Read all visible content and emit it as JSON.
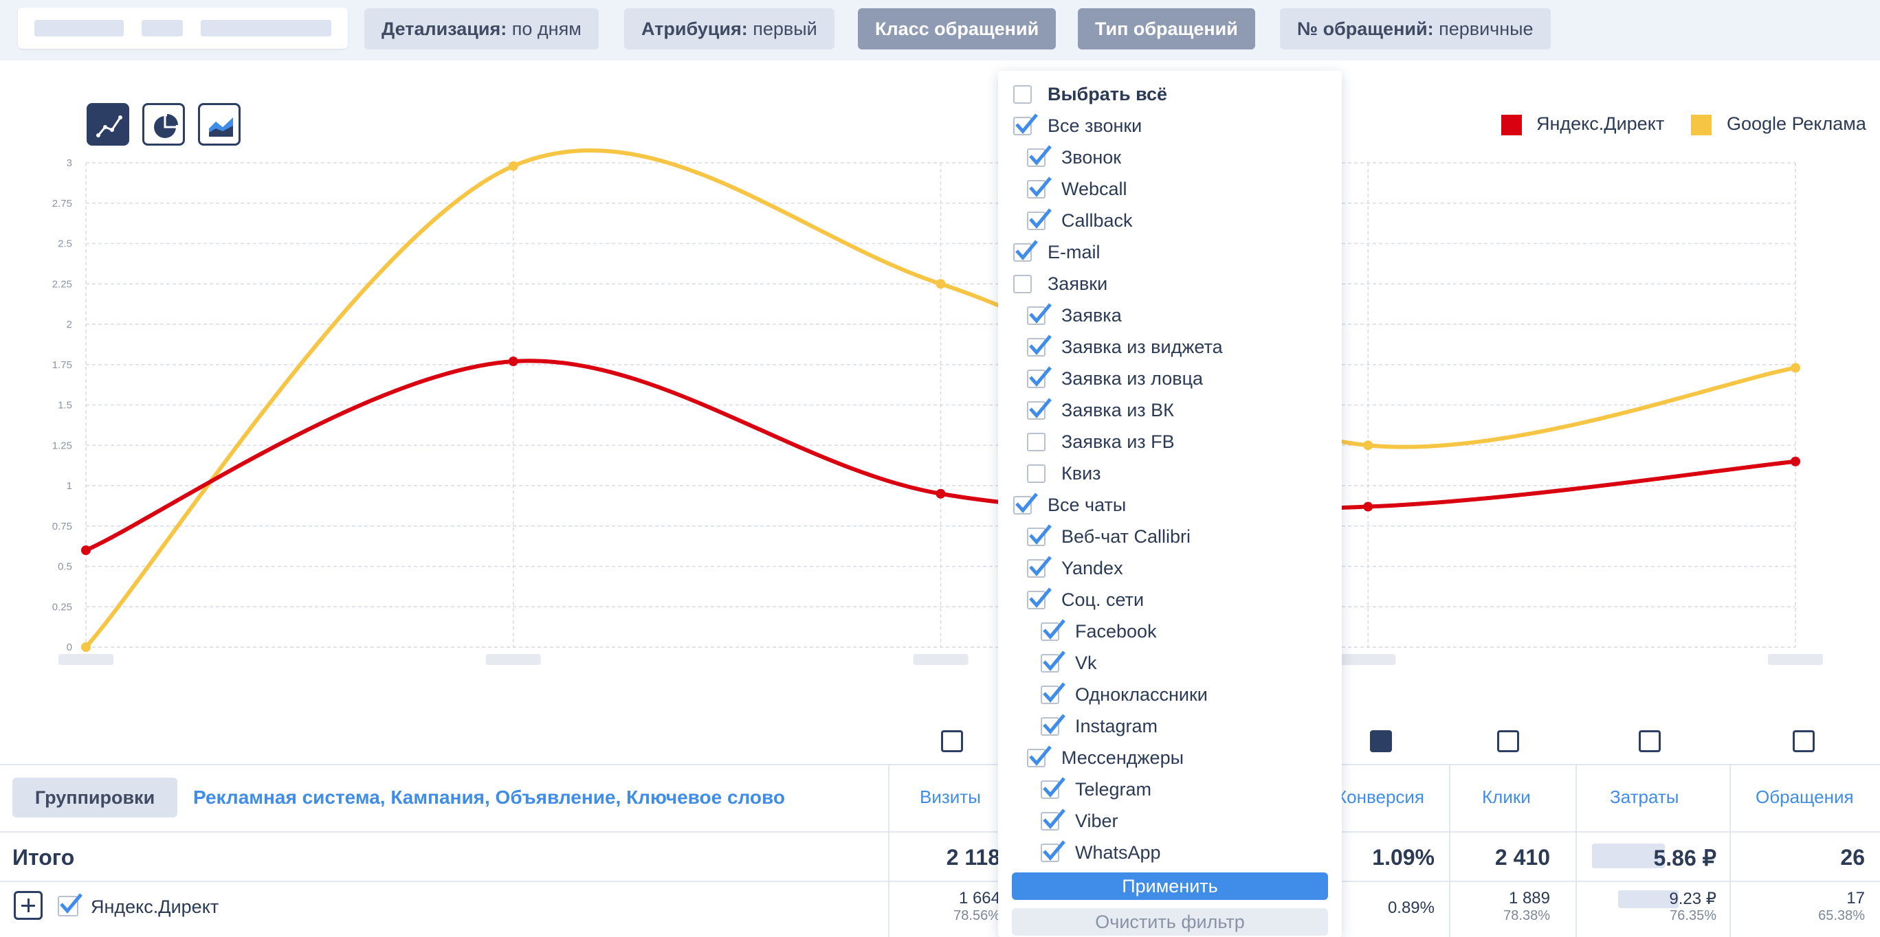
{
  "topbar": {
    "detail": {
      "key": "Детализация:",
      "value": "по дням"
    },
    "attribution": {
      "key": "Атрибуция:",
      "value": "первый"
    },
    "class_label": "Класс обращений",
    "type_label": "Тип обращений",
    "number": {
      "key": "№ обращений:",
      "value": "первичные"
    }
  },
  "legend": [
    {
      "name": "Яндекс.Директ",
      "color": "#d9000f"
    },
    {
      "name": "Google Реклама",
      "color": "#f7c544"
    }
  ],
  "chart_data": {
    "type": "line",
    "ylim": [
      0,
      3
    ],
    "yticks": [
      "0",
      "0.25",
      "0.5",
      "0.75",
      "1",
      "1.25",
      "1.5",
      "1.75",
      "2",
      "2.25",
      "2.5",
      "2.75",
      "3"
    ],
    "x_count": 5,
    "series": [
      {
        "name": "Яндекс.Директ",
        "color": "#d9000f",
        "values": [
          0.6,
          1.77,
          0.95,
          0.87,
          1.15
        ]
      },
      {
        "name": "Google Реклама",
        "color": "#f7c544",
        "values": [
          0.0,
          2.98,
          2.25,
          1.25,
          1.73
        ]
      }
    ]
  },
  "dropdown": {
    "items": [
      {
        "label": "Выбрать всё",
        "checked": false,
        "level": 0,
        "bold": true
      },
      {
        "label": "Все звонки",
        "checked": true,
        "level": 0
      },
      {
        "label": "Звонок",
        "checked": true,
        "level": 1
      },
      {
        "label": "Webcall",
        "checked": true,
        "level": 1
      },
      {
        "label": "Callback",
        "checked": true,
        "level": 1
      },
      {
        "label": "E-mail",
        "checked": true,
        "level": 0
      },
      {
        "label": "Заявки",
        "checked": false,
        "level": 0
      },
      {
        "label": "Заявка",
        "checked": true,
        "level": 1
      },
      {
        "label": "Заявка из виджета",
        "checked": true,
        "level": 1
      },
      {
        "label": "Заявка из ловца",
        "checked": true,
        "level": 1
      },
      {
        "label": "Заявка из ВК",
        "checked": true,
        "level": 1
      },
      {
        "label": "Заявка из FB",
        "checked": false,
        "level": 1
      },
      {
        "label": "Квиз",
        "checked": false,
        "level": 1
      },
      {
        "label": "Все чаты",
        "checked": true,
        "level": 0
      },
      {
        "label": "Веб-чат Callibri",
        "checked": true,
        "level": 1
      },
      {
        "label": "Yandex",
        "checked": true,
        "level": 1
      },
      {
        "label": "Соц. сети",
        "checked": true,
        "level": 1
      },
      {
        "label": "Facebook",
        "checked": true,
        "level": 2
      },
      {
        "label": "Vk",
        "checked": true,
        "level": 2
      },
      {
        "label": "Одноклассники",
        "checked": true,
        "level": 2
      },
      {
        "label": "Instagram",
        "checked": true,
        "level": 2
      },
      {
        "label": "Мессенджеры",
        "checked": true,
        "level": 1
      },
      {
        "label": "Telegram",
        "checked": true,
        "level": 2
      },
      {
        "label": "Viber",
        "checked": true,
        "level": 2
      },
      {
        "label": "WhatsApp",
        "checked": true,
        "level": 2
      }
    ],
    "apply_label": "Применить",
    "clear_label": "Очистить фильтр"
  },
  "table": {
    "group_button": "Группировки",
    "group_list": "Рекламная система, Кампания, Объявление, Ключевое слово",
    "columns": {
      "visits": "Визиты",
      "conversion": "Конверсия",
      "clicks": "Клики",
      "costs": "Затраты",
      "requests": "Обращения"
    },
    "total": {
      "label": "Итого",
      "visits": "2 118",
      "conversion": "1.09%",
      "clicks": "2 410",
      "costs": "5.86 ₽",
      "requests": "26"
    },
    "row": {
      "label": "Яндекс.Директ",
      "visits": "1 664",
      "visits_pct": "78.56%",
      "conversion": "0.89%",
      "clicks": "1 889",
      "clicks_pct": "78.38%",
      "costs": "9.23 ₽",
      "costs_pct": "76.35%",
      "requests": "17",
      "requests_pct": "65.38%"
    }
  }
}
